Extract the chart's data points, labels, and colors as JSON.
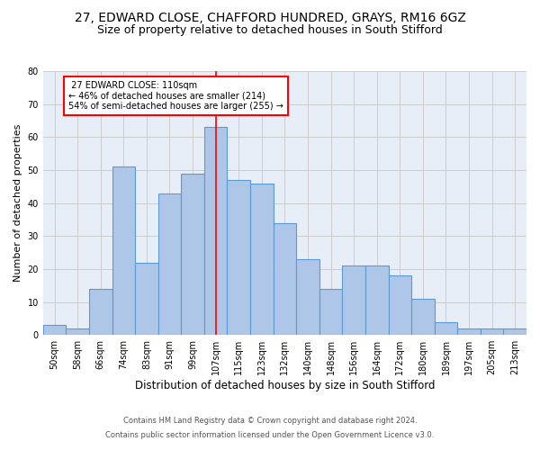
{
  "title": "27, EDWARD CLOSE, CHAFFORD HUNDRED, GRAYS, RM16 6GZ",
  "subtitle": "Size of property relative to detached houses in South Stifford",
  "xlabel": "Distribution of detached houses by size in South Stifford",
  "ylabel": "Number of detached properties",
  "footnote1": "Contains HM Land Registry data © Crown copyright and database right 2024.",
  "footnote2": "Contains public sector information licensed under the Open Government Licence v3.0.",
  "bar_labels": [
    "50sqm",
    "58sqm",
    "66sqm",
    "74sqm",
    "83sqm",
    "91sqm",
    "99sqm",
    "107sqm",
    "115sqm",
    "123sqm",
    "132sqm",
    "140sqm",
    "148sqm",
    "156sqm",
    "164sqm",
    "172sqm",
    "180sqm",
    "189sqm",
    "197sqm",
    "205sqm",
    "213sqm"
  ],
  "bar_values": [
    3,
    2,
    14,
    51,
    22,
    43,
    49,
    63,
    47,
    46,
    34,
    23,
    14,
    21,
    21,
    18,
    11,
    4,
    2,
    2,
    2
  ],
  "bar_color": "#aec6e8",
  "bar_edge_color": "#5b9bd5",
  "property_label": "27 EDWARD CLOSE: 110sqm",
  "pct_smaller": 46,
  "n_smaller": 214,
  "pct_larger": 54,
  "n_larger": 255,
  "vline_color": "red",
  "ylim": [
    0,
    80
  ],
  "yticks": [
    0,
    10,
    20,
    30,
    40,
    50,
    60,
    70,
    80
  ],
  "grid_color": "#cccccc",
  "bg_color": "#e8eef8",
  "title_fontsize": 10,
  "subtitle_fontsize": 9,
  "tick_fontsize": 7,
  "ylabel_fontsize": 8,
  "xlabel_fontsize": 8.5,
  "annotation_fontsize": 7,
  "footnote_fontsize": 6,
  "vline_x": 7.0,
  "bar_width": 1.0
}
